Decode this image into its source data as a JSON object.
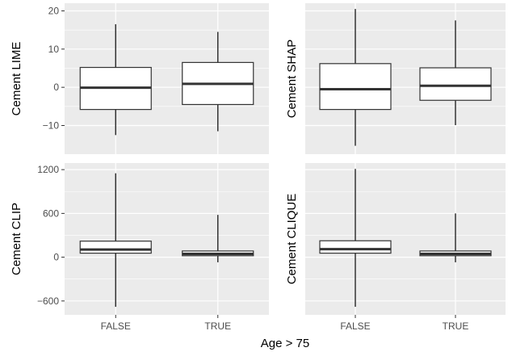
{
  "chart_data": {
    "type": "boxplot",
    "layout": "2x2 facet grid",
    "xlabel": "Age > 75",
    "categories": [
      "FALSE",
      "TRUE"
    ],
    "grid": true,
    "panel_background": "#ebebeb",
    "grid_color": "#ffffff",
    "box_fill": "#ffffff",
    "line_color": "#333333",
    "rows": [
      {
        "yticks": [
          -10,
          0,
          10,
          20
        ],
        "ylim": [
          -17.5,
          22
        ],
        "panels": [
          {
            "ylabel": "Cement LIME",
            "boxes": [
              {
                "category": "FALSE",
                "min": -12.5,
                "q1": -5.8,
                "median": -0.1,
                "q3": 5.2,
                "max": 16.5
              },
              {
                "category": "TRUE",
                "min": -11.5,
                "q1": -4.5,
                "median": 0.9,
                "q3": 6.5,
                "max": 14.5
              }
            ]
          },
          {
            "ylabel": "Cement SHAP",
            "boxes": [
              {
                "category": "FALSE",
                "min": -15.3,
                "q1": -5.8,
                "median": -0.5,
                "q3": 6.2,
                "max": 20.5
              },
              {
                "category": "TRUE",
                "min": -9.9,
                "q1": -3.4,
                "median": 0.4,
                "q3": 5.1,
                "max": 17.5
              }
            ]
          }
        ]
      },
      {
        "yticks": [
          -600,
          0,
          600,
          1200
        ],
        "ylim": [
          -790,
          1290
        ],
        "panels": [
          {
            "ylabel": "Cement CLIP",
            "boxes": [
              {
                "category": "FALSE",
                "min": -680,
                "q1": 55,
                "median": 105,
                "q3": 220,
                "max": 1150
              },
              {
                "category": "TRUE",
                "min": -70,
                "q1": 20,
                "median": 45,
                "q3": 85,
                "max": 580
              }
            ]
          },
          {
            "ylabel": "Cement CLIQUE",
            "boxes": [
              {
                "category": "FALSE",
                "min": -680,
                "q1": 55,
                "median": 110,
                "q3": 225,
                "max": 1210
              },
              {
                "category": "TRUE",
                "min": -70,
                "q1": 20,
                "median": 45,
                "q3": 85,
                "max": 600
              }
            ]
          }
        ]
      }
    ]
  }
}
